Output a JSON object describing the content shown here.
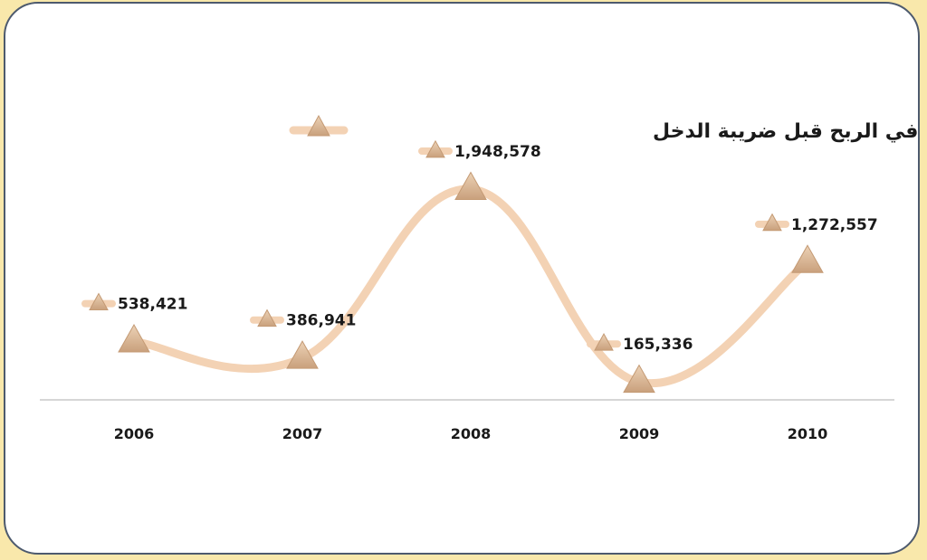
{
  "chart_data": {
    "type": "line",
    "title": "",
    "xlabel": "",
    "ylabel": "",
    "categories": [
      "2006",
      "2007",
      "2008",
      "2009",
      "2010"
    ],
    "series": [
      {
        "name": "صافي الربح قبل ضريبة الدخل",
        "values": [
          538421,
          386941,
          1948578,
          165336,
          1272557
        ],
        "labels": [
          "538,421",
          "386,941",
          "1,948,578",
          "165,336",
          "1,272,557"
        ]
      }
    ],
    "ylim": [
      0,
      2200000
    ],
    "grid": false,
    "legend": "top"
  },
  "colors": {
    "background": "#f9e8ab",
    "border": "#4d5a6e",
    "line": "#f3d2b4",
    "marker": "#dcb894",
    "axis": "#c8c8c8"
  }
}
